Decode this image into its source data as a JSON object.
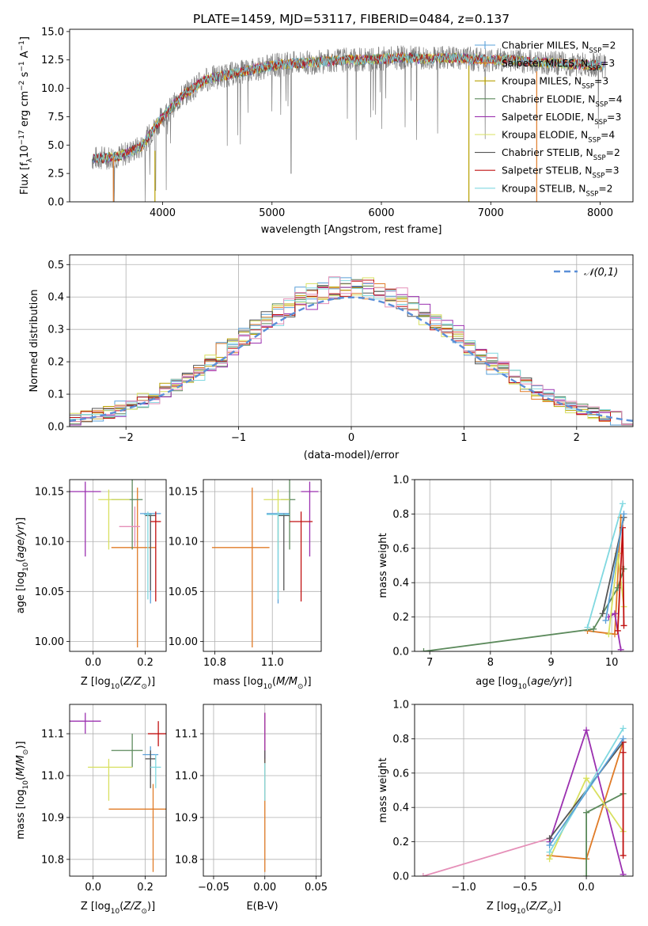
{
  "figure": {
    "title": "PLATE=1459, MJD=53117, FIBERID=0484, z=0.137"
  },
  "legend_entries": [
    {
      "label": "Chabrier MILES, N",
      "sub": "SSP",
      "suffix": "=2",
      "color": "#5aa0d8"
    },
    {
      "label": "Salpeter MILES, N",
      "sub": "SSP",
      "suffix": "=3",
      "color": "#e07b27"
    },
    {
      "label": "Kroupa MILES, N",
      "sub": "SSP",
      "suffix": "=3",
      "color": "#b8a000"
    },
    {
      "label": "Chabrier ELODIE, N",
      "sub": "SSP",
      "suffix": "=4",
      "color": "#5c8a5c"
    },
    {
      "label": "Salpeter ELODIE, N",
      "sub": "SSP",
      "suffix": "=3",
      "color": "#9b30b0"
    },
    {
      "label": "Kroupa ELODIE, N",
      "sub": "SSP",
      "suffix": "=4",
      "color": "#d8e060"
    },
    {
      "label": "Chabrier STELIB, N",
      "sub": "SSP",
      "suffix": "=2",
      "color": "#555555"
    },
    {
      "label": "Salpeter STELIB, N",
      "sub": "SSP",
      "suffix": "=3",
      "color": "#c01010"
    },
    {
      "label": "Kroupa STELIB, N",
      "sub": "SSP",
      "suffix": "=2",
      "color": "#80d8e0"
    }
  ],
  "chart_data": [
    {
      "id": "spectrum",
      "type": "line",
      "xlabel": "wavelength [Angstrom, rest frame]",
      "ylabel": "Flux [f",
      "ylabel_sub": "λ",
      "ylabel_rest": "10",
      "ylabel_exp": "−17",
      "ylabel_tail": " erg cm",
      "ylabel_exp2": "−2",
      "ylabel_tail2": " s",
      "ylabel_exp3": "−1",
      "ylabel_tail3": " A",
      "ylabel_exp4": "−1",
      "ylabel_end": "]",
      "xlim": [
        3150,
        8300
      ],
      "ylim": [
        0,
        15.2
      ],
      "xticks": [
        "4000",
        "5000",
        "6000",
        "7000",
        "8000"
      ],
      "yticks": [
        "0.0",
        "2.5",
        "5.0",
        "7.5",
        "10.0",
        "12.5",
        "15.0"
      ],
      "grid": false,
      "legend_position": "upper right",
      "continuum": [
        [
          3350,
          3.8
        ],
        [
          3600,
          4.0
        ],
        [
          3800,
          4.8
        ],
        [
          4000,
          7.5
        ],
        [
          4200,
          9.5
        ],
        [
          4400,
          10.8
        ],
        [
          4600,
          11.2
        ],
        [
          4800,
          11.6
        ],
        [
          5000,
          12.0
        ],
        [
          5200,
          12.2
        ],
        [
          5400,
          12.3
        ],
        [
          5600,
          12.5
        ],
        [
          5800,
          12.5
        ],
        [
          6000,
          12.6
        ],
        [
          6200,
          12.7
        ],
        [
          6400,
          12.6
        ],
        [
          6600,
          12.7
        ],
        [
          6800,
          12.6
        ],
        [
          7000,
          12.5
        ],
        [
          7200,
          12.5
        ],
        [
          7400,
          12.3
        ],
        [
          7600,
          12.2
        ],
        [
          7800,
          12.1
        ],
        [
          8050,
          12.0
        ]
      ]
    },
    {
      "id": "residuals",
      "type": "line",
      "xlabel": "(data-model)/error",
      "ylabel": "Normed distribution",
      "xlim": [
        -2.5,
        2.5
      ],
      "ylim": [
        0,
        0.53
      ],
      "xticks": [
        "−2",
        "−1",
        "0",
        "1",
        "2"
      ],
      "yticks": [
        "0.0",
        "0.1",
        "0.2",
        "0.3",
        "0.4",
        "0.5"
      ],
      "grid": true,
      "legend": {
        "label": "𝒩(0,1)",
        "position": "upper right"
      },
      "bin_width": 0.1
    },
    {
      "id": "age_vs_Z",
      "type": "scatter",
      "xlabel": "Z [log10(Z/Z⊙)]",
      "ylabel": "age  [log10(age/yr)]",
      "xlim": [
        -0.09,
        0.28
      ],
      "ylim": [
        9.99,
        10.162
      ],
      "xticks": [
        "0.0",
        "0.2"
      ],
      "yticks": [
        "10.00",
        "10.05",
        "10.10",
        "10.15"
      ],
      "grid": true,
      "points": [
        {
          "x": 0.22,
          "y": 10.128,
          "xerr": 0.04,
          "yerr": [
            0.09,
            0.0
          ],
          "color": "#5aa0d8"
        },
        {
          "x": 0.17,
          "y": 10.094,
          "xerr": [
            0.1,
            0.07
          ],
          "yerr": [
            0.1,
            0.06
          ],
          "color": "#e07b27"
        },
        {
          "x": 0.15,
          "y": 10.142,
          "xerr": [
            0.08,
            0.04
          ],
          "yerr": [
            0.05,
            0.02
          ],
          "color": "#5c8a5c"
        },
        {
          "x": -0.03,
          "y": 10.15,
          "xerr": 0.06,
          "yerr": [
            0.065,
            0.01
          ],
          "color": "#9b30b0"
        },
        {
          "x": 0.06,
          "y": 10.142,
          "xerr": [
            0.04,
            0.08
          ],
          "yerr": [
            0.05,
            0.01
          ],
          "color": "#d8e060"
        },
        {
          "x": 0.22,
          "y": 10.126,
          "xerr": 0.02,
          "yerr": [
            0.075,
            0.002
          ],
          "color": "#555555"
        },
        {
          "x": 0.24,
          "y": 10.12,
          "xerr": 0.02,
          "yerr": [
            0.08,
            0.01
          ],
          "color": "#c01010"
        },
        {
          "x": 0.21,
          "y": 10.127,
          "xerr": 0.015,
          "yerr": [
            0.085,
            0.003
          ],
          "color": "#80d8e0"
        },
        {
          "x": 0.16,
          "y": 10.115,
          "xerr": [
            0.06,
            0.02
          ],
          "yerr": 0.02,
          "color": "#e58fb8"
        }
      ]
    },
    {
      "id": "age_vs_mass",
      "type": "scatter",
      "xlabel": "mass [log10(M/M⊙)]",
      "ylabel": "",
      "xlim": [
        10.76,
        11.17
      ],
      "ylim": [
        9.99,
        10.162
      ],
      "xticks": [
        "10.8",
        "11.0"
      ],
      "yticks": [
        "10.00",
        "10.05",
        "10.10",
        "10.15"
      ],
      "grid": true,
      "points": [
        {
          "x": 11.02,
          "y": 10.128,
          "xerr": [
            0.04,
            0.04
          ],
          "yerr": [
            0.09,
            0.0
          ],
          "color": "#5aa0d8"
        },
        {
          "x": 10.93,
          "y": 10.094,
          "xerr": [
            0.14,
            0.06
          ],
          "yerr": [
            0.1,
            0.06
          ],
          "color": "#e07b27"
        },
        {
          "x": 11.06,
          "y": 10.142,
          "xerr": [
            0.03,
            0.02
          ],
          "yerr": [
            0.05,
            0.02
          ],
          "color": "#5c8a5c"
        },
        {
          "x": 11.13,
          "y": 10.15,
          "xerr": 0.03,
          "yerr": [
            0.065,
            0.01
          ],
          "color": "#9b30b0"
        },
        {
          "x": 11.02,
          "y": 10.142,
          "xerr": [
            0.05,
            0.04
          ],
          "yerr": [
            0.05,
            0.01
          ],
          "color": "#d8e060"
        },
        {
          "x": 11.04,
          "y": 10.126,
          "xerr": 0.02,
          "yerr": [
            0.075,
            0.002
          ],
          "color": "#555555"
        },
        {
          "x": 11.1,
          "y": 10.12,
          "xerr": 0.04,
          "yerr": [
            0.08,
            0.01
          ],
          "color": "#c01010"
        },
        {
          "x": 11.02,
          "y": 10.127,
          "xerr": 0.04,
          "yerr": [
            0.085,
            0.003
          ],
          "color": "#80d8e0"
        }
      ]
    },
    {
      "id": "weight_vs_age",
      "type": "line",
      "xlabel": "age  [log10(age/yr)]",
      "ylabel": "mass weight",
      "xlim": [
        6.75,
        10.35
      ],
      "ylim": [
        0,
        1
      ],
      "xticks": [
        "7",
        "8",
        "9",
        "10"
      ],
      "yticks": [
        "0.0",
        "0.2",
        "0.4",
        "0.6",
        "0.8",
        "1.0"
      ],
      "grid": true,
      "series": [
        {
          "color": "#e07b27",
          "x": [
            9.6,
            10.05,
            10.15,
            10.15
          ],
          "y": [
            0.12,
            0.1,
            0.78,
            0.78
          ]
        },
        {
          "color": "#5c8a5c",
          "x": [
            6.9,
            9.7,
            10.1,
            10.2,
            10.18
          ],
          "y": [
            0.0,
            0.13,
            0.37,
            0.48,
            0.48
          ]
        },
        {
          "color": "#9b30b0",
          "x": [
            9.95,
            10.05,
            10.15
          ],
          "y": [
            0.2,
            0.22,
            0.01
          ]
        },
        {
          "color": "#d8e060",
          "x": [
            9.95,
            10.1,
            10.2
          ],
          "y": [
            0.1,
            0.57,
            0.26
          ]
        },
        {
          "color": "#555555",
          "x": [
            9.85,
            10.2
          ],
          "y": [
            0.22,
            0.78
          ]
        },
        {
          "color": "#c01010",
          "x": [
            10.1,
            10.18,
            10.2
          ],
          "y": [
            0.12,
            0.72,
            0.15
          ]
        },
        {
          "color": "#80d8e0",
          "x": [
            9.6,
            10.18
          ],
          "y": [
            0.14,
            0.86
          ]
        },
        {
          "color": "#5aa0d8",
          "x": [
            9.9,
            10.2
          ],
          "y": [
            0.18,
            0.8
          ]
        }
      ]
    },
    {
      "id": "mass_vs_Z",
      "type": "scatter",
      "xlabel": "Z [log10(Z/Z⊙)]",
      "ylabel": "mass [log10(M/M⊙)]",
      "xlim": [
        -0.09,
        0.28
      ],
      "ylim": [
        10.76,
        11.17
      ],
      "xticks": [
        "0.0",
        "0.2"
      ],
      "yticks": [
        "10.8",
        "10.9",
        "11.0",
        "11.1"
      ],
      "grid": true,
      "points": [
        {
          "x": 0.22,
          "y": 11.05,
          "xerr": 0.03,
          "yerr": [
            0.05,
            0.02
          ],
          "color": "#5aa0d8"
        },
        {
          "x": 0.23,
          "y": 10.92,
          "xerr": [
            0.17,
            0.05
          ],
          "yerr": [
            0.15,
            0.06
          ],
          "color": "#e07b27"
        },
        {
          "x": 0.15,
          "y": 11.06,
          "xerr": [
            0.08,
            0.04
          ],
          "yerr": [
            0.04,
            0.04
          ],
          "color": "#5c8a5c"
        },
        {
          "x": -0.03,
          "y": 11.13,
          "xerr": 0.06,
          "yerr": [
            0.03,
            0.02
          ],
          "color": "#9b30b0"
        },
        {
          "x": 0.06,
          "y": 11.02,
          "xerr": [
            0.08,
            0.09
          ],
          "yerr": [
            0.08,
            0.02
          ],
          "color": "#d8e060"
        },
        {
          "x": 0.22,
          "y": 11.04,
          "xerr": 0.02,
          "yerr": [
            0.07,
            0.02
          ],
          "color": "#555555"
        },
        {
          "x": 0.25,
          "y": 11.1,
          "xerr": 0.04,
          "yerr": [
            0.03,
            0.03
          ],
          "color": "#c01010"
        },
        {
          "x": 0.24,
          "y": 11.02,
          "xerr": 0.02,
          "yerr": [
            0.05,
            0.03
          ],
          "color": "#80d8e0"
        }
      ]
    },
    {
      "id": "mass_vs_EBV",
      "type": "scatter",
      "xlabel": "E(B-V)",
      "ylabel": "",
      "xlim": [
        -0.06,
        0.055
      ],
      "ylim": [
        10.76,
        11.17
      ],
      "xticks": [
        "−0.05",
        "0.00",
        "0.05"
      ],
      "yticks": [
        "10.8",
        "10.9",
        "11.0",
        "11.1"
      ],
      "grid": true,
      "points": [
        {
          "x": 0.0,
          "y": 11.0,
          "xerr": 0,
          "yerr": [
            0.23,
            0.15
          ],
          "color": "#e07b27"
        },
        {
          "x": 0.0,
          "y": 11.06,
          "xerr": 0,
          "yerr": [
            0.02,
            0.09
          ],
          "color": "#9b30b0"
        },
        {
          "x": 0.0,
          "y": 11.0,
          "xerr": 0,
          "yerr": [
            0.06,
            0.03
          ],
          "color": "#80d8e0"
        },
        {
          "x": 0.0,
          "y": 11.04,
          "xerr": 0,
          "yerr": [
            0.01,
            0.02
          ],
          "color": "#555555"
        }
      ]
    },
    {
      "id": "weight_vs_Z",
      "type": "line",
      "xlabel": "Z [log10(Z/Z⊙)]",
      "ylabel": "mass weight",
      "xlim": [
        -1.4,
        0.38
      ],
      "ylim": [
        0,
        1
      ],
      "xticks": [
        "−1.0",
        "−0.5",
        "0.0"
      ],
      "yticks": [
        "0.0",
        "0.2",
        "0.4",
        "0.6",
        "0.8",
        "1.0"
      ],
      "grid": true,
      "series": [
        {
          "color": "#e58fb8",
          "x": [
            -1.33,
            -0.3
          ],
          "y": [
            0.0,
            0.22
          ]
        },
        {
          "color": "#9b30b0",
          "x": [
            -0.3,
            0.0,
            0.3
          ],
          "y": [
            0.2,
            0.85,
            0.01
          ]
        },
        {
          "color": "#e07b27",
          "x": [
            -0.3,
            0.0,
            0.3,
            0.3
          ],
          "y": [
            0.12,
            0.1,
            0.78,
            0.78
          ]
        },
        {
          "color": "#5c8a5c",
          "x": [
            0.0,
            0.0,
            0.3,
            0.3
          ],
          "y": [
            0.0,
            0.37,
            0.48,
            0.48
          ]
        },
        {
          "color": "#d8e060",
          "x": [
            -0.3,
            0.0,
            0.3
          ],
          "y": [
            0.1,
            0.57,
            0.26
          ]
        },
        {
          "color": "#555555",
          "x": [
            -0.3,
            0.3
          ],
          "y": [
            0.22,
            0.78
          ]
        },
        {
          "color": "#c01010",
          "x": [
            0.3,
            0.3,
            0.3
          ],
          "y": [
            0.12,
            0.72,
            0.78
          ]
        },
        {
          "color": "#80d8e0",
          "x": [
            -0.3,
            0.3
          ],
          "y": [
            0.14,
            0.86
          ]
        },
        {
          "color": "#5aa0d8",
          "x": [
            -0.3,
            0.3
          ],
          "y": [
            0.18,
            0.8
          ]
        }
      ]
    }
  ]
}
